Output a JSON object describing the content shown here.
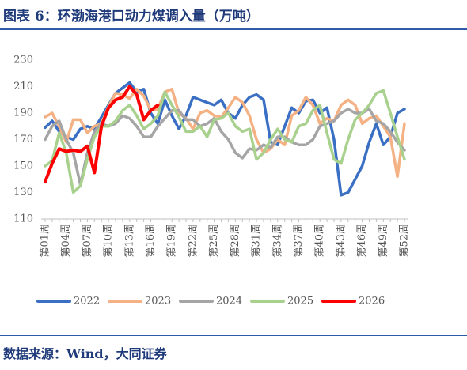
{
  "chart_data": {
    "type": "line",
    "title": "图表 6：环渤海港口动力煤调入量（万吨）",
    "source": "数据来源：Wind，大同证券",
    "categories": [
      "第01周",
      null,
      null,
      "第04周",
      null,
      null,
      "第07周",
      null,
      null,
      "第10周",
      null,
      null,
      "第13周",
      null,
      null,
      "第16周",
      null,
      null,
      "第19周",
      null,
      null,
      "第22周",
      null,
      null,
      "第25周",
      null,
      null,
      "第28周",
      null,
      null,
      "第31周",
      null,
      null,
      "第34周",
      null,
      null,
      "第37周",
      null,
      null,
      "第40周",
      null,
      null,
      "第43周",
      null,
      null,
      "第46周",
      null,
      null,
      "第49周",
      null,
      null,
      "第52周"
    ],
    "ylim": [
      110,
      230
    ],
    "yticks": [
      110,
      130,
      150,
      170,
      190,
      210,
      230
    ],
    "grid": false,
    "legend": "bottom",
    "series": [
      {
        "name": "2022",
        "color": "#3a6fc4",
        "values": [
          179,
          184,
          176,
          172,
          170,
          178,
          180,
          178,
          187,
          196,
          205,
          209,
          213,
          206,
          208,
          190,
          182,
          200,
          188,
          178,
          188,
          202,
          200,
          198,
          196,
          200,
          190,
          186,
          196,
          202,
          204,
          200,
          168,
          166,
          180,
          194,
          190,
          199,
          200,
          190,
          194,
          170,
          128,
          130,
          140,
          150,
          168,
          182,
          166,
          172,
          190,
          193
        ]
      },
      {
        "name": "2023",
        "color": "#f4b183",
        "values": [
          187,
          190,
          180,
          168,
          185,
          185,
          175,
          180,
          182,
          195,
          205,
          204,
          201,
          208,
          203,
          192,
          193,
          206,
          208,
          190,
          186,
          178,
          190,
          192,
          188,
          187,
          194,
          202,
          198,
          188,
          170,
          160,
          163,
          170,
          166,
          188,
          192,
          202,
          196,
          182,
          186,
          184,
          196,
          200,
          196,
          182,
          186,
          188,
          180,
          172,
          142,
          182
        ]
      },
      {
        "name": "2024",
        "color": "#a5a5a5",
        "values": [
          170,
          180,
          184,
          170,
          160,
          136,
          160,
          176,
          182,
          180,
          182,
          188,
          186,
          180,
          172,
          172,
          180,
          186,
          192,
          192,
          185,
          185,
          180,
          182,
          186,
          176,
          170,
          160,
          156,
          163,
          162,
          166,
          164,
          172,
          172,
          168,
          166,
          166,
          170,
          180,
          182,
          184,
          190,
          193,
          190,
          190,
          193,
          184,
          182,
          176,
          168,
          162
        ]
      },
      {
        "name": "2025",
        "color": "#a9d18e",
        "values": [
          150,
          154,
          175,
          160,
          130,
          135,
          155,
          172,
          180,
          180,
          184,
          192,
          196,
          188,
          178,
          182,
          188,
          206,
          196,
          187,
          176,
          176,
          180,
          172,
          185,
          186,
          190,
          180,
          176,
          178,
          155,
          160,
          170,
          178,
          170,
          168,
          180,
          182,
          192,
          196,
          175,
          155,
          152,
          170,
          185,
          190,
          196,
          205,
          207,
          190,
          172,
          155
        ]
      },
      {
        "name": "2026",
        "color": "#ff0000",
        "values": [
          138,
          152,
          163,
          161,
          162,
          161,
          165,
          145,
          180,
          194,
          200,
          202,
          210,
          204,
          185,
          192,
          196,
          null,
          null,
          null,
          null,
          null,
          null,
          null,
          null,
          null,
          null,
          null,
          null,
          null,
          null,
          null,
          null,
          null,
          null,
          null,
          null,
          null,
          null,
          null,
          null,
          null,
          null,
          null,
          null,
          null,
          null,
          null,
          null,
          null,
          null,
          null
        ]
      }
    ]
  }
}
